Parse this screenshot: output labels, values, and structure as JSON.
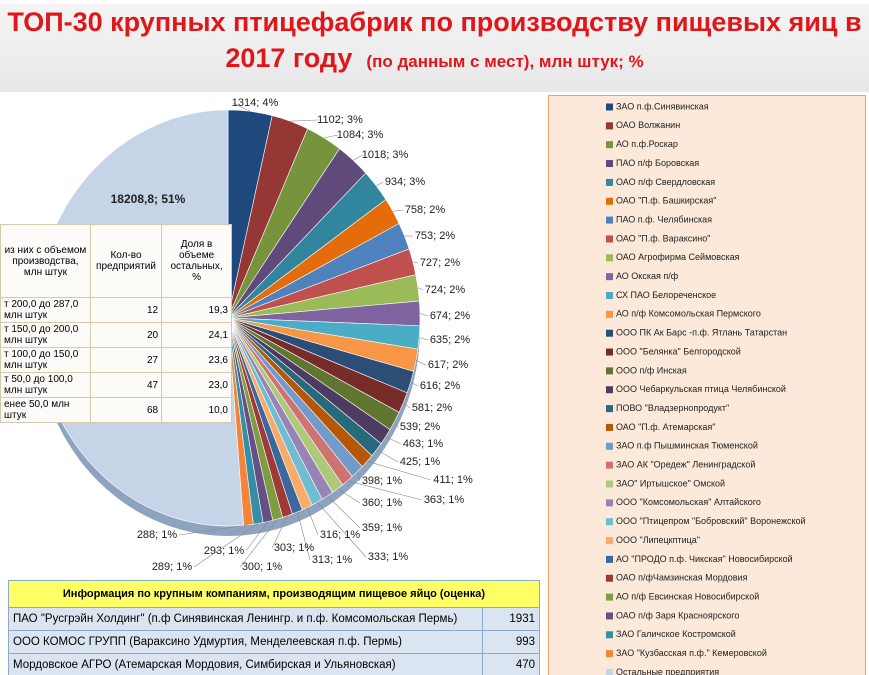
{
  "chart_data": {
    "type": "pie",
    "title": "ТОП-30 крупных птицефабрик по производству пищевых яиц в 2017 году",
    "subtitle": "(по данным с мест), млн штук; %",
    "categories": [
      "ЗАО п.ф.Синявинская",
      "ОАО Волжанин",
      "АО п.ф.Роскар",
      "ПАО п/ф Боровская",
      "ОАО п/ф Свердловская",
      "ОАО \"П.ф. Башкирская\"",
      "ПАО п.ф. Челябинская",
      "ОАО \"П.ф. Вараксино\"",
      "ОАО Агрофирма Сеймовская",
      "АО Окская п/ф",
      "СХ ПАО Белореченское",
      "АО п/ф Комсомольская Пермского",
      "ООО ПК Ак Барс -п.ф. Ятлань  Татарстан",
      "ООО \"Белянка\" Белгородской",
      "ООО п/ф Инская",
      "ООО Чебаркульская птица Челябинской",
      "ПОВО \"Владзернопродукт\"",
      "ОАО \"П.ф. Атемарская\"",
      "ЗАО п.ф Пышминская Тюменской",
      "ЗАО АК \"Оредеж\" Ленинградской",
      "ЗАО\" Иртышское\" Омской",
      "ООО \"Комсомольская\" Алтайского",
      "ООО \"Птицепром \"Бобровский\" Воронежской",
      "ООО \"Липецкптица\"",
      "АО \"ПРОДО п.ф. Чикская\" Новосибирской",
      "ОАО п/фЧамзинская Мордовия",
      "АО п/ф Евсинская Новосибирской",
      "ОАО п/ф Заря Красноярского",
      "ЗАО Галичское Костромской",
      "ЗАО \"Кузбасская п.ф.\" Кемеровской",
      "Остальные предприятия"
    ],
    "values": [
      1314,
      1102,
      1084,
      1018,
      934,
      758,
      753,
      727,
      724,
      674,
      635,
      617,
      616,
      581,
      539,
      463,
      425,
      411,
      398,
      363,
      360,
      359,
      333,
      316,
      313,
      303,
      300,
      293,
      289,
      288,
      18208.8
    ],
    "value_labels": [
      "1314; 4%",
      "1102; 3%",
      "1084; 3%",
      "1018; 3%",
      "934; 3%",
      "758; 2%",
      "753; 2%",
      "727; 2%",
      "724; 2%",
      "674; 2%",
      "635; 2%",
      "617; 2%",
      "616; 2%",
      "581; 2%",
      "539; 2%",
      "463; 1%",
      "425; 1%",
      "411; 1%",
      "398; 1%",
      "363; 1%",
      "360; 1%",
      "359; 1%",
      "333; 1%",
      "316; 1%",
      "313; 1%",
      "303; 1%",
      "300; 1%",
      "293; 1%",
      "289; 1%",
      "288; 1%",
      "18208,8; 51%"
    ],
    "colors": [
      "#1f497d",
      "#953735",
      "#77933c",
      "#604a7b",
      "#31859c",
      "#e46c0a",
      "#4f81bd",
      "#c0504d",
      "#9bbb59",
      "#8064a2",
      "#4bacc6",
      "#f79646",
      "#2c4d75",
      "#772c2a",
      "#5f7530",
      "#4d3b62",
      "#276a7c",
      "#b65708",
      "#729aca",
      "#cd7371",
      "#afc97a",
      "#9983b5",
      "#6fbdd1",
      "#f9ab6b",
      "#3a679c",
      "#9e3b38",
      "#7e9c40",
      "#664f83",
      "#358ea6",
      "#f2853a",
      "#c6d4e8"
    ]
  },
  "inset_table": {
    "header": [
      "из них с объемом производства, млн штук",
      "Кол-во предприятий",
      "Доля в объеме остальных, %"
    ],
    "rows": [
      [
        "т 200,0 до 287,0 млн штук",
        "12",
        "19,3"
      ],
      [
        "т 150,0 до 200,0 млн штук",
        "20",
        "24,1"
      ],
      [
        "т 100,0 до 150,0 млн штук",
        "27",
        "23,6"
      ],
      [
        "т 50,0 до 100,0 млн штук",
        "47",
        "23,0"
      ],
      [
        "енее 50,0 млн штук",
        "68",
        "10,0"
      ]
    ]
  },
  "info_table": {
    "title": "Информация по крупным компаниям, производящим пищевое яйцо (оценка)",
    "rows": [
      [
        "ПАО \"Русгрэйн Холдинг\" (п.ф Синявинская Ленингр. и п.ф. Комсомольская Пермь)",
        "1931"
      ],
      [
        "ООО КОМОС ГРУПП (Вараксино Удмуртия, Менделеевская п.ф. Пермь)",
        "993"
      ],
      [
        "Мордовское АГРО (Атемарская Мордовия, Симбирская и Ульяновская)",
        "470"
      ]
    ]
  }
}
